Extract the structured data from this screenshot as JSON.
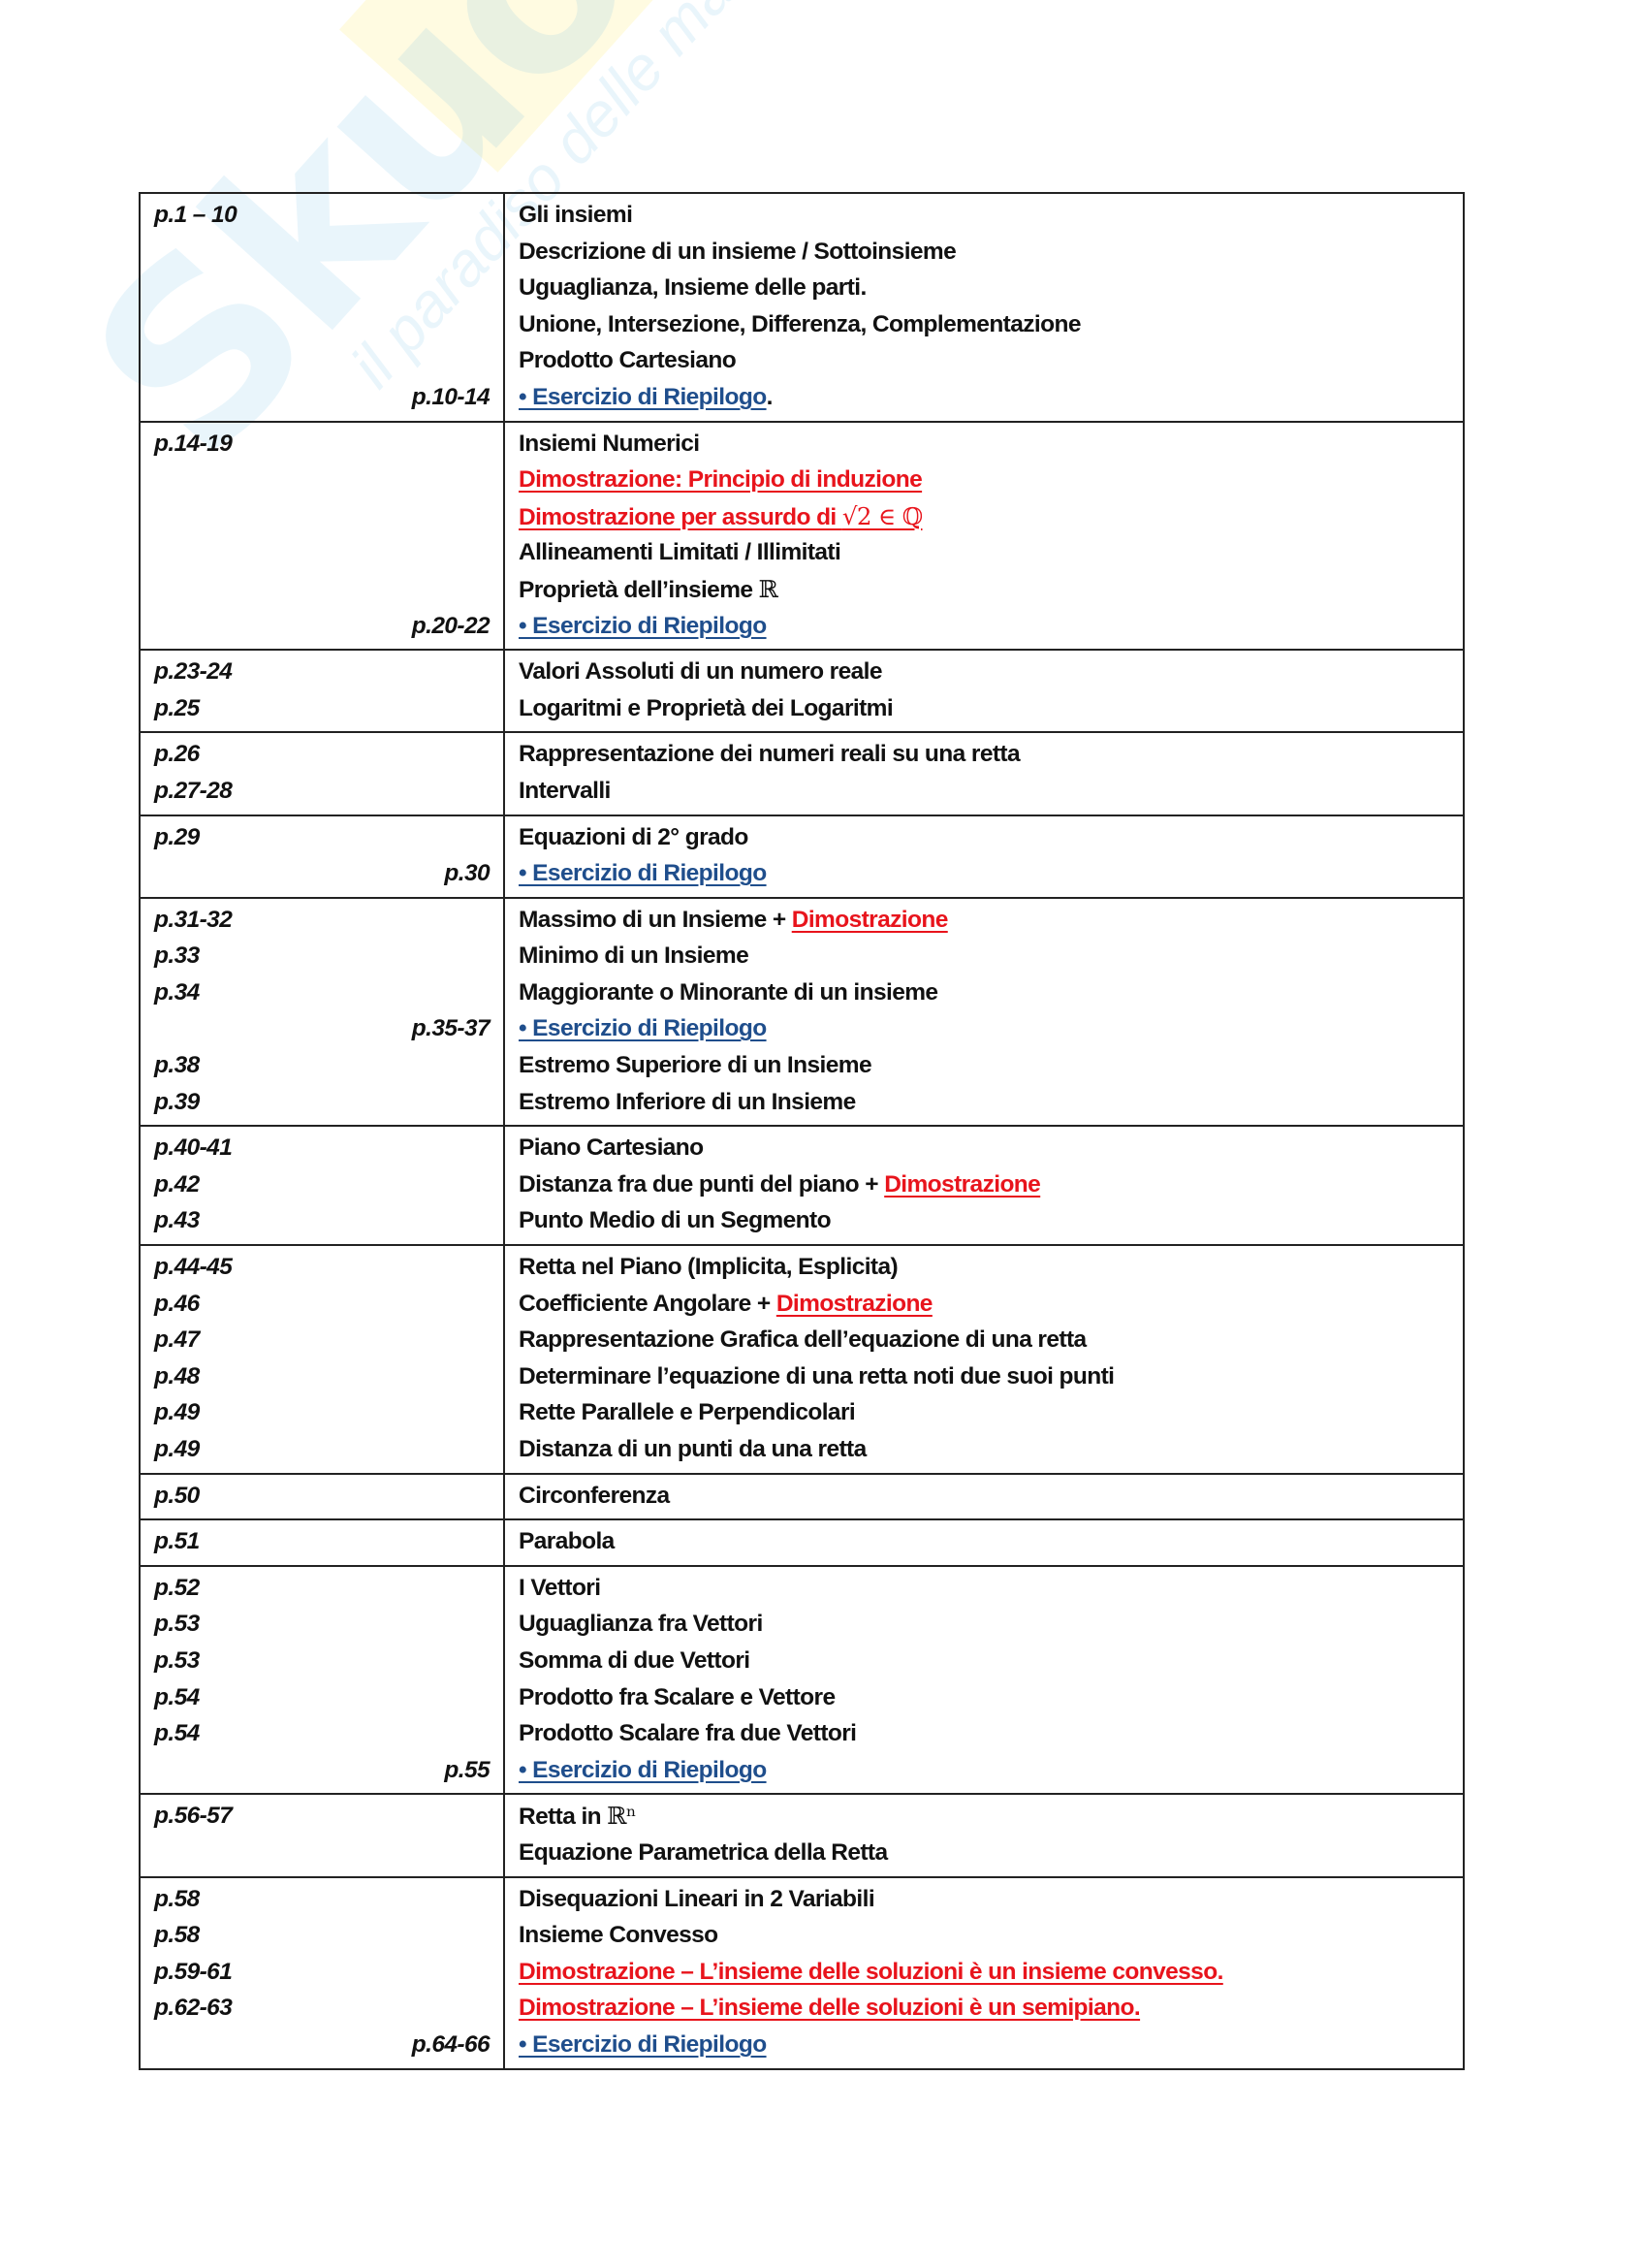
{
  "watermark": {
    "text": "Skuola.net",
    "tagline": "il paradiso delle matricole"
  },
  "colors": {
    "red": "#e8141c",
    "blue": "#1f4e8c",
    "text": "#111111"
  },
  "rows": [
    {
      "lines": [
        {
          "page": "p.1 – 10",
          "align": "left",
          "parts": [
            {
              "text": "Gli insiemi",
              "style": "normal"
            }
          ]
        },
        {
          "page": "",
          "align": "left",
          "parts": [
            {
              "text": "Descrizione di un insieme / Sottoinsieme",
              "style": "normal"
            }
          ]
        },
        {
          "page": "",
          "align": "left",
          "parts": [
            {
              "text": "Uguaglianza, Insieme delle parti.",
              "style": "normal"
            }
          ]
        },
        {
          "page": "",
          "align": "left",
          "parts": [
            {
              "text": "Unione, Intersezione, Differenza, Complementazione",
              "style": "normal"
            }
          ]
        },
        {
          "page": "",
          "align": "left",
          "parts": [
            {
              "text": "Prodotto Cartesiano",
              "style": "normal"
            }
          ]
        },
        {
          "page": "p.10-14",
          "align": "right",
          "parts": [
            {
              "text": "• Esercizio di Riepilogo",
              "style": "blue"
            },
            {
              "text": ".",
              "style": "normal"
            }
          ]
        }
      ]
    },
    {
      "lines": [
        {
          "page": "p.14-19",
          "align": "left",
          "parts": [
            {
              "text": "Insiemi Numerici",
              "style": "normal"
            }
          ]
        },
        {
          "page": "",
          "align": "left",
          "parts": [
            {
              "text": "Dimostrazione: Principio di induzione",
              "style": "red"
            }
          ]
        },
        {
          "page": "",
          "align": "left",
          "parts": [
            {
              "text": "Dimostrazione per assurdo di ",
              "style": "red"
            },
            {
              "text": "√2 ∈ ℚ",
              "style": "red-math"
            }
          ]
        },
        {
          "page": "",
          "align": "left",
          "parts": [
            {
              "text": "Allineamenti Limitati / Illimitati",
              "style": "normal"
            }
          ]
        },
        {
          "page": "",
          "align": "left",
          "parts": [
            {
              "text": "Proprietà dell’insieme ",
              "style": "normal"
            },
            {
              "text": "ℝ",
              "style": "math"
            }
          ]
        },
        {
          "page": "p.20-22",
          "align": "right",
          "parts": [
            {
              "text": "• Esercizio di Riepilogo",
              "style": "blue"
            }
          ]
        }
      ]
    },
    {
      "lines": [
        {
          "page": "p.23-24",
          "align": "left",
          "parts": [
            {
              "text": "Valori Assoluti di un numero reale",
              "style": "normal"
            }
          ]
        },
        {
          "page": "p.25",
          "align": "left",
          "parts": [
            {
              "text": "Logaritmi e Proprietà dei Logaritmi",
              "style": "normal"
            }
          ]
        }
      ]
    },
    {
      "lines": [
        {
          "page": "p.26",
          "align": "left",
          "parts": [
            {
              "text": "Rappresentazione dei numeri reali su una retta",
              "style": "normal"
            }
          ]
        },
        {
          "page": "p.27-28",
          "align": "left",
          "parts": [
            {
              "text": "Intervalli",
              "style": "normal"
            }
          ]
        }
      ]
    },
    {
      "lines": [
        {
          "page": "p.29",
          "align": "left",
          "parts": [
            {
              "text": "Equazioni di 2° grado",
              "style": "normal"
            }
          ]
        },
        {
          "page": "p.30",
          "align": "right",
          "parts": [
            {
              "text": "• Esercizio di Riepilogo",
              "style": "blue"
            }
          ]
        }
      ]
    },
    {
      "lines": [
        {
          "page": "p.31-32",
          "align": "left",
          "parts": [
            {
              "text": "Massimo di un Insieme + ",
              "style": "normal"
            },
            {
              "text": "Dimostrazione",
              "style": "red"
            }
          ]
        },
        {
          "page": "p.33",
          "align": "left",
          "parts": [
            {
              "text": "Minimo di un Insieme",
              "style": "normal"
            }
          ]
        },
        {
          "page": "p.34",
          "align": "left",
          "parts": [
            {
              "text": "Maggiorante o Minorante di un insieme",
              "style": "normal"
            }
          ]
        },
        {
          "page": "p.35-37",
          "align": "right",
          "parts": [
            {
              "text": "• Esercizio di Riepilogo",
              "style": "blue"
            }
          ]
        },
        {
          "page": "p.38",
          "align": "left",
          "parts": [
            {
              "text": "Estremo Superiore di un Insieme",
              "style": "normal"
            }
          ]
        },
        {
          "page": "p.39",
          "align": "left",
          "parts": [
            {
              "text": "Estremo Inferiore di un Insieme",
              "style": "normal"
            }
          ]
        }
      ]
    },
    {
      "lines": [
        {
          "page": "p.40-41",
          "align": "left",
          "parts": [
            {
              "text": "Piano Cartesiano",
              "style": "normal"
            }
          ]
        },
        {
          "page": "p.42",
          "align": "left",
          "parts": [
            {
              "text": "Distanza fra due punti del  piano + ",
              "style": "normal"
            },
            {
              "text": "Dimostrazione",
              "style": "red"
            }
          ]
        },
        {
          "page": "p.43",
          "align": "left",
          "parts": [
            {
              "text": "Punto Medio di un Segmento",
              "style": "normal"
            }
          ]
        }
      ]
    },
    {
      "lines": [
        {
          "page": "p.44-45",
          "align": "left",
          "parts": [
            {
              "text": "Retta nel Piano (Implicita, Esplicita)",
              "style": "normal"
            }
          ]
        },
        {
          "page": "p.46",
          "align": "left",
          "parts": [
            {
              "text": "Coefficiente Angolare + ",
              "style": "normal"
            },
            {
              "text": "Dimostrazione",
              "style": "red"
            }
          ]
        },
        {
          "page": "p.47",
          "align": "left",
          "parts": [
            {
              "text": "Rappresentazione Grafica dell’equazione di una retta",
              "style": "normal"
            }
          ]
        },
        {
          "page": "p.48",
          "align": "left",
          "parts": [
            {
              "text": "Determinare l’equazione di una retta noti due suoi punti",
              "style": "normal"
            }
          ]
        },
        {
          "page": "p.49",
          "align": "left",
          "parts": [
            {
              "text": "Rette Parallele e Perpendicolari",
              "style": "normal"
            }
          ]
        },
        {
          "page": "p.49",
          "align": "left",
          "parts": [
            {
              "text": "Distanza di un punti da una retta",
              "style": "normal"
            }
          ]
        }
      ]
    },
    {
      "lines": [
        {
          "page": "p.50",
          "align": "left",
          "parts": [
            {
              "text": "Circonferenza",
              "style": "normal"
            }
          ]
        }
      ]
    },
    {
      "lines": [
        {
          "page": "p.51",
          "align": "left",
          "parts": [
            {
              "text": "Parabola",
              "style": "normal"
            }
          ]
        }
      ]
    },
    {
      "lines": [
        {
          "page": "p.52",
          "align": "left",
          "parts": [
            {
              "text": "I Vettori",
              "style": "normal"
            }
          ]
        },
        {
          "page": "p.53",
          "align": "left",
          "parts": [
            {
              "text": "Uguaglianza fra Vettori",
              "style": "normal"
            }
          ]
        },
        {
          "page": "p.53",
          "align": "left",
          "parts": [
            {
              "text": "Somma di due Vettori",
              "style": "normal"
            }
          ]
        },
        {
          "page": "p.54",
          "align": "left",
          "parts": [
            {
              "text": "Prodotto fra Scalare e Vettore",
              "style": "normal"
            }
          ]
        },
        {
          "page": "p.54",
          "align": "left",
          "parts": [
            {
              "text": "Prodotto Scalare fra due Vettori",
              "style": "normal"
            }
          ]
        },
        {
          "page": "p.55",
          "align": "right",
          "parts": [
            {
              "text": "• Esercizio di Riepilogo",
              "style": "blue"
            }
          ]
        }
      ]
    },
    {
      "lines": [
        {
          "page": "p.56-57",
          "align": "left",
          "parts": [
            {
              "text": "Retta in ",
              "style": "normal"
            },
            {
              "text": "ℝⁿ",
              "style": "math"
            }
          ]
        },
        {
          "page": "",
          "align": "left",
          "parts": [
            {
              "text": "Equazione Parametrica della Retta",
              "style": "normal"
            }
          ]
        }
      ]
    },
    {
      "lines": [
        {
          "page": "p.58",
          "align": "left",
          "parts": [
            {
              "text": "Disequazioni Lineari in 2 Variabili",
              "style": "normal"
            }
          ]
        },
        {
          "page": "p.58",
          "align": "left",
          "parts": [
            {
              "text": "Insieme Convesso",
              "style": "normal"
            }
          ]
        },
        {
          "page": "p.59-61",
          "align": "left",
          "parts": [
            {
              "text": "Dimostrazione – L’insieme delle soluzioni è un insieme convesso.",
              "style": "red"
            }
          ]
        },
        {
          "page": "p.62-63",
          "align": "left",
          "parts": [
            {
              "text": "Dimostrazione – L’insieme delle soluzioni è un semipiano.",
              "style": "red"
            }
          ]
        },
        {
          "page": "p.64-66",
          "align": "right",
          "parts": [
            {
              "text": "• Esercizio di Riepilogo",
              "style": "blue"
            }
          ]
        }
      ]
    }
  ]
}
